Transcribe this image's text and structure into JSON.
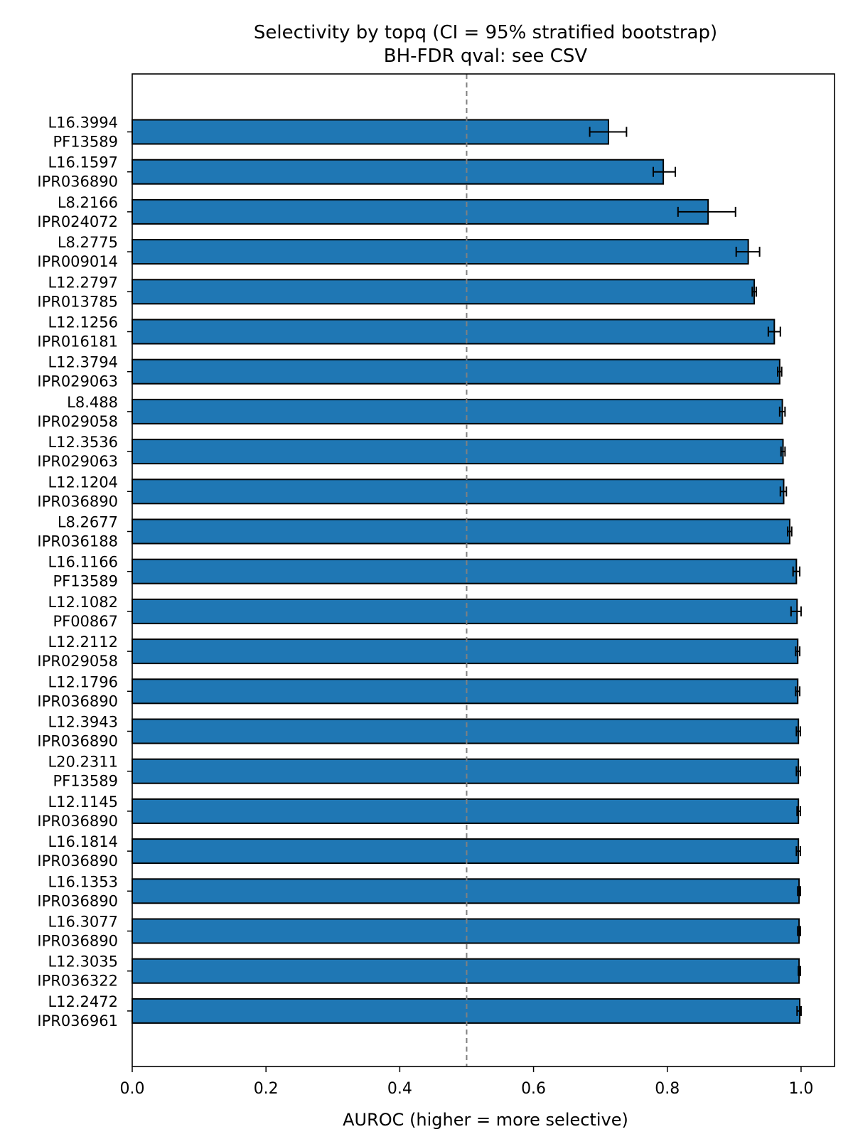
{
  "chart_data": {
    "type": "bar",
    "orientation": "horizontal",
    "title": "Selectivity by topq (CI = 95% stratified bootstrap)",
    "subtitle": "BH-FDR qval: see CSV",
    "xlabel": "AUROC (higher = more selective)",
    "ylabel": "",
    "xlim": [
      0.0,
      1.05
    ],
    "xticks": [
      "0.0",
      "0.2",
      "0.4",
      "0.6",
      "0.8",
      "1.0"
    ],
    "reference_line": 0.5,
    "grid": false,
    "bar_color": "#1f77b4",
    "categories": [
      [
        "L16.3994",
        "PF13589"
      ],
      [
        "L16.1597",
        "IPR036890"
      ],
      [
        "L8.2166",
        "IPR024072"
      ],
      [
        "L8.2775",
        "IPR009014"
      ],
      [
        "L12.2797",
        "IPR013785"
      ],
      [
        "L12.1256",
        "IPR016181"
      ],
      [
        "L12.3794",
        "IPR029063"
      ],
      [
        "L8.488",
        "IPR029058"
      ],
      [
        "L12.3536",
        "IPR029063"
      ],
      [
        "L12.1204",
        "IPR036890"
      ],
      [
        "L8.2677",
        "IPR036188"
      ],
      [
        "L16.1166",
        "PF13589"
      ],
      [
        "L12.1082",
        "PF00867"
      ],
      [
        "L12.2112",
        "IPR029058"
      ],
      [
        "L12.1796",
        "IPR036890"
      ],
      [
        "L12.3943",
        "IPR036890"
      ],
      [
        "L20.2311",
        "PF13589"
      ],
      [
        "L12.1145",
        "IPR036890"
      ],
      [
        "L16.1814",
        "IPR036890"
      ],
      [
        "L16.1353",
        "IPR036890"
      ],
      [
        "L16.3077",
        "IPR036890"
      ],
      [
        "L12.3035",
        "IPR036322"
      ],
      [
        "L12.2472",
        "IPR036961"
      ]
    ],
    "values": [
      0.712,
      0.794,
      0.861,
      0.921,
      0.93,
      0.96,
      0.968,
      0.972,
      0.973,
      0.974,
      0.983,
      0.993,
      0.994,
      0.995,
      0.995,
      0.996,
      0.996,
      0.996,
      0.996,
      0.997,
      0.997,
      0.997,
      0.998
    ],
    "ci_low": [
      0.684,
      0.779,
      0.816,
      0.903,
      0.927,
      0.951,
      0.965,
      0.968,
      0.97,
      0.969,
      0.98,
      0.988,
      0.985,
      0.992,
      0.992,
      0.993,
      0.993,
      0.994,
      0.993,
      0.995,
      0.995,
      0.996,
      0.994
    ],
    "ci_high": [
      0.739,
      0.812,
      0.902,
      0.938,
      0.933,
      0.969,
      0.971,
      0.976,
      0.976,
      0.978,
      0.986,
      0.998,
      1.0,
      0.998,
      0.998,
      0.999,
      0.999,
      0.999,
      0.999,
      0.999,
      0.999,
      0.999,
      1.0
    ]
  }
}
